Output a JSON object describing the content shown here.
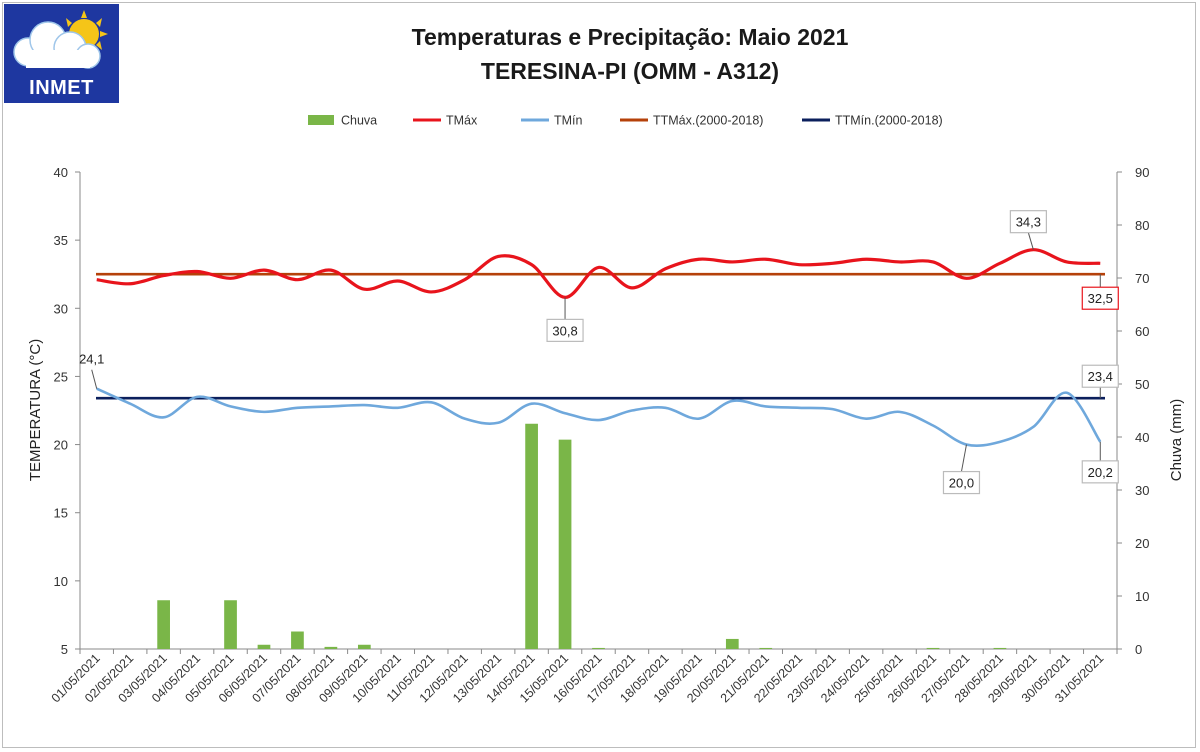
{
  "logo": {
    "text": "INMET"
  },
  "chart_data": {
    "type": "bar+line",
    "title": "Temperaturas e Precipitação: Maio 2021",
    "subtitle": "TERESINA-PI (OMM - A312)",
    "ylabel_left": "TEMPERATURA (°C)",
    "ylabel_right": "Chuva (mm)",
    "ylim_left": [
      5,
      40
    ],
    "ylim_right": [
      0,
      90
    ],
    "yticks_left": [
      "5",
      "10",
      "15",
      "20",
      "25",
      "30",
      "35",
      "40"
    ],
    "yticks_right": [
      "0",
      "10",
      "20",
      "30",
      "40",
      "50",
      "60",
      "70",
      "80",
      "90"
    ],
    "grid": false,
    "legend_position": "top",
    "categories": [
      "01/05/2021",
      "02/05/2021",
      "03/05/2021",
      "04/05/2021",
      "05/05/2021",
      "06/05/2021",
      "07/05/2021",
      "08/05/2021",
      "09/05/2021",
      "10/05/2021",
      "11/05/2021",
      "12/05/2021",
      "13/05/2021",
      "14/05/2021",
      "15/05/2021",
      "16/05/2021",
      "17/05/2021",
      "18/05/2021",
      "19/05/2021",
      "20/05/2021",
      "21/05/2021",
      "22/05/2021",
      "23/05/2021",
      "24/05/2021",
      "25/05/2021",
      "26/05/2021",
      "27/05/2021",
      "28/05/2021",
      "29/05/2021",
      "30/05/2021",
      "31/05/2021"
    ],
    "series": [
      {
        "name": "Chuva",
        "kind": "bar",
        "axis": "right",
        "color": "#7ab648",
        "values": [
          0,
          0,
          9.2,
          0,
          9.2,
          0.8,
          3.3,
          0.4,
          0.8,
          0,
          0,
          0,
          0,
          42.5,
          39.5,
          0.2,
          0,
          0,
          0,
          1.9,
          0.2,
          0,
          0,
          0,
          0,
          0.2,
          0,
          0.2,
          0,
          0,
          0
        ]
      },
      {
        "name": "TMáx",
        "kind": "line",
        "axis": "left",
        "color": "#e8141c",
        "values": [
          32.1,
          31.8,
          32.4,
          32.7,
          32.2,
          32.8,
          32.1,
          32.8,
          31.4,
          32.0,
          31.2,
          32.1,
          33.8,
          33.2,
          30.8,
          33.0,
          31.5,
          32.9,
          33.6,
          33.4,
          33.6,
          33.2,
          33.3,
          33.6,
          33.4,
          33.4,
          32.2,
          33.3,
          34.3,
          33.4,
          33.3
        ]
      },
      {
        "name": "TMín",
        "kind": "line",
        "axis": "left",
        "color": "#6fa8dc",
        "values": [
          24.1,
          23.0,
          22.0,
          23.5,
          22.8,
          22.4,
          22.7,
          22.8,
          22.9,
          22.7,
          23.1,
          21.9,
          21.6,
          23.0,
          22.3,
          21.8,
          22.5,
          22.7,
          21.9,
          23.2,
          22.8,
          22.7,
          22.6,
          21.9,
          22.4,
          21.4,
          20.0,
          20.2,
          21.3,
          23.8,
          20.2
        ]
      },
      {
        "name": "TTMáx.(2000-2018)",
        "kind": "ref",
        "axis": "left",
        "color": "#b5410a",
        "value": 32.5
      },
      {
        "name": "TTMín.(2000-2018)",
        "kind": "ref",
        "axis": "left",
        "color": "#0b1f5c",
        "value": 23.4
      }
    ],
    "annotations": [
      {
        "text": "24,1",
        "series": "TMín",
        "index": 0,
        "boxed": false
      },
      {
        "text": "30,8",
        "series": "TMáx",
        "index": 14,
        "boxed": true
      },
      {
        "text": "34,3",
        "series": "TMáx",
        "index": 28,
        "boxed": true
      },
      {
        "text": "20,0",
        "series": "TMín",
        "index": 26,
        "boxed": true
      },
      {
        "text": "23,4",
        "series": "TTMín.(2000-2018)",
        "index": 30,
        "boxed": true
      },
      {
        "text": "20,2",
        "series": "TMín",
        "index": 30,
        "boxed": true
      },
      {
        "text": "32,5",
        "series": "TTMáx.(2000-2018)",
        "index": 30,
        "boxed": true,
        "boxColor": "#e8141c"
      }
    ]
  }
}
